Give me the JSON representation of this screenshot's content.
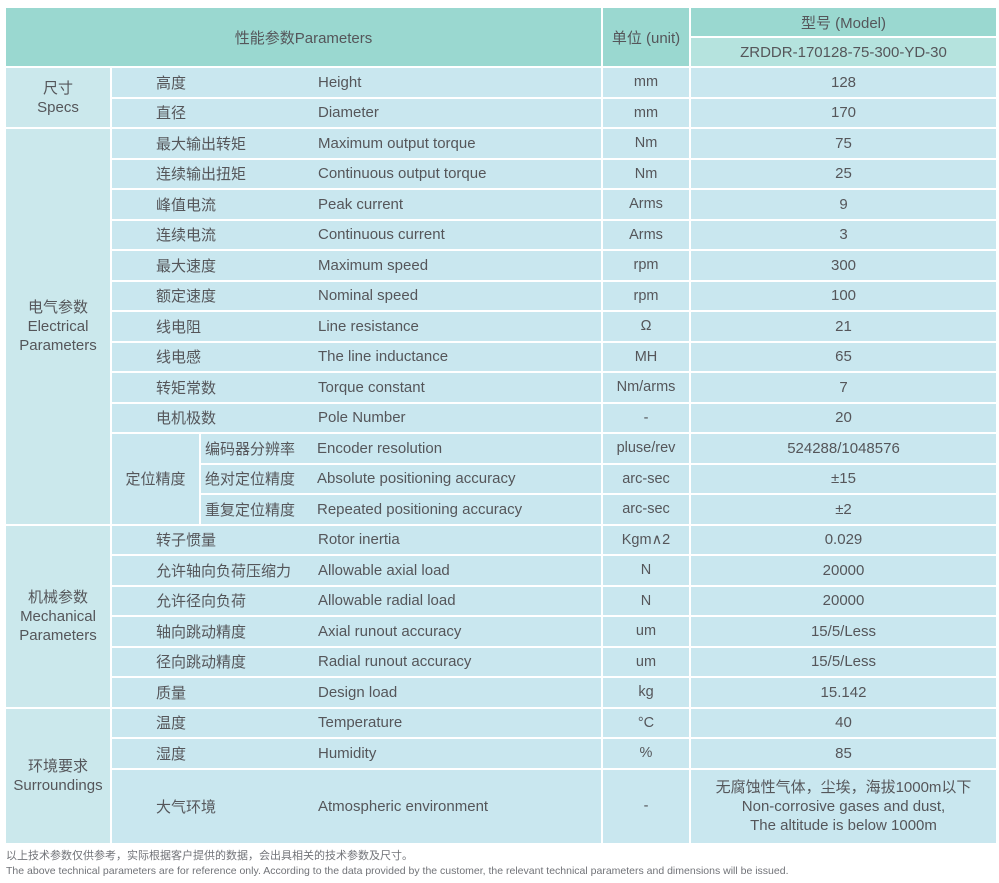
{
  "colors": {
    "header_teal": "#9ad8d0",
    "model_row_teal": "#b5e3de",
    "body_blue": "#c9e7ef",
    "section_blue": "#cbe8ec",
    "text": "#55565a",
    "footer_gray": "#717378"
  },
  "table": {
    "header": {
      "params_label": "性能参数Parameters",
      "unit_label": "单位 (unit)",
      "model_label": "型号 (Model)",
      "model_value": "ZRDDR-170128-75-300-YD-30"
    },
    "sections": [
      {
        "label_zh": "尺寸",
        "label_en": "Specs",
        "rows": [
          {
            "zh": "高度",
            "en": "Height",
            "unit": "mm",
            "value": "128"
          },
          {
            "zh": "直径",
            "en": "Diameter",
            "unit": "mm",
            "value": "170"
          }
        ]
      },
      {
        "label_zh": "电气参数",
        "label_en": "Electrical Parameters",
        "rows": [
          {
            "zh": "最大输出转矩",
            "en": "Maximum output torque",
            "unit": "Nm",
            "value": "75"
          },
          {
            "zh": "连续输出扭矩",
            "en": "Continuous output torque",
            "unit": "Nm",
            "value": "25"
          },
          {
            "zh": "峰值电流",
            "en": "Peak current",
            "unit": "Arms",
            "value": "9"
          },
          {
            "zh": "连续电流",
            "en": "Continuous current",
            "unit": "Arms",
            "value": "3"
          },
          {
            "zh": "最大速度",
            "en": "Maximum speed",
            "unit": "rpm",
            "value": "300"
          },
          {
            "zh": "额定速度",
            "en": "Nominal speed",
            "unit": "rpm",
            "value": "100"
          },
          {
            "zh": "线电阻",
            "en": "Line resistance",
            "unit": "Ω",
            "value": "21"
          },
          {
            "zh": "线电感",
            "en": "The line inductance",
            "unit": "MH",
            "value": "65"
          },
          {
            "zh": "转矩常数",
            "en": "Torque constant",
            "unit": "Nm/arms",
            "value": "7"
          },
          {
            "zh": "电机极数",
            "en": "Pole Number",
            "unit": "-",
            "value": "20"
          }
        ],
        "group": {
          "label": "定位精度",
          "rows": [
            {
              "zh": "编码器分辨率",
              "en": "Encoder resolution",
              "unit": "pluse/rev",
              "value": "524288/1048576"
            },
            {
              "zh": "绝对定位精度",
              "en": "Absolute positioning accuracy",
              "unit": "arc-sec",
              "value": "±15"
            },
            {
              "zh": "重复定位精度",
              "en": "Repeated positioning accuracy",
              "unit": "arc-sec",
              "value": "±2"
            }
          ]
        }
      },
      {
        "label_zh": "机械参数",
        "label_en": "Mechanical Parameters",
        "rows": [
          {
            "zh": "转子惯量",
            "en": "Rotor inertia",
            "unit": "Kgm∧2",
            "value": "0.029"
          },
          {
            "zh": "允许轴向负荷压缩力",
            "en": "Allowable axial load",
            "unit": "N",
            "value": "20000"
          },
          {
            "zh": "允许径向负荷",
            "en": "Allowable radial load",
            "unit": "N",
            "value": "20000"
          },
          {
            "zh": "轴向跳动精度",
            "en": "Axial runout accuracy",
            "unit": "um",
            "value": "15/5/Less"
          },
          {
            "zh": "径向跳动精度",
            "en": "Radial runout accuracy",
            "unit": "um",
            "value": "15/5/Less"
          },
          {
            "zh": "质量",
            "en": "Design load",
            "unit": "kg",
            "value": "15.142"
          }
        ]
      },
      {
        "label_zh": "环境要求",
        "label_en": "Surroundings",
        "rows": [
          {
            "zh": "温度",
            "en": "Temperature",
            "unit": "°C",
            "value": "40"
          },
          {
            "zh": "湿度",
            "en": "Humidity",
            "unit": "%",
            "value": "85"
          },
          {
            "zh": "大气环境",
            "en": "Atmospheric environment",
            "unit": "-",
            "value": "无腐蚀性气体，尘埃，海拔1000m以下\nNon-corrosive gases and dust,\nThe altitude is below 1000m",
            "tall": true
          }
        ]
      }
    ]
  },
  "footer": {
    "line_zh": "以上技术参数仅供参考，实际根据客户提供的数据，会出具相关的技术参数及尺寸。",
    "line_en": "The above technical parameters are for reference only. According to the data provided by the customer, the relevant technical parameters and dimensions will be issued."
  }
}
